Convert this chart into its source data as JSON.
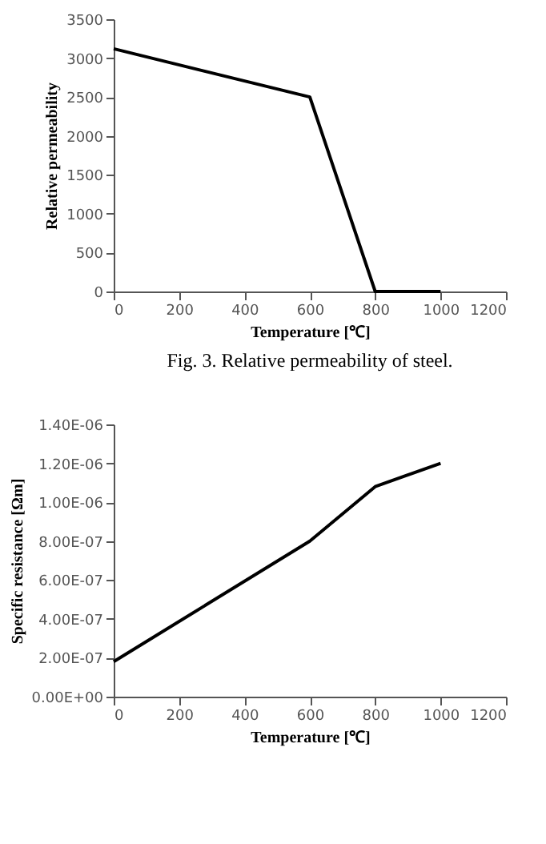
{
  "chart_data": [
    {
      "type": "line",
      "xlabel": "Temperature [℃]",
      "ylabel": "Relative permeability",
      "x": [
        0,
        600,
        800,
        1000
      ],
      "series": [
        {
          "color": "#000000",
          "values": [
            3120,
            2500,
            0,
            0
          ]
        }
      ],
      "xlim": [
        0,
        1200
      ],
      "xticks": [
        0,
        200,
        400,
        600,
        800,
        1000,
        1200
      ],
      "ylim": [
        0,
        3500
      ],
      "yticks": [
        0,
        500,
        1000,
        1500,
        2000,
        2500,
        3000,
        3500
      ],
      "grid": false,
      "marker": "none",
      "line_style": "solid",
      "annotations": [
        "Fig. 3. Relative permeability of steel."
      ]
    },
    {
      "type": "line",
      "xlabel": "Temperature [℃]",
      "ylabel": "Specific resistance [Ωm]",
      "x": [
        0,
        600,
        800,
        1000
      ],
      "series": [
        {
          "color": "#000000",
          "values": [
            1.8e-07,
            8e-07,
            1.08e-06,
            1.2e-06
          ]
        }
      ],
      "xlim": [
        0,
        1200
      ],
      "xticks": [
        0,
        200,
        400,
        600,
        800,
        1000,
        1200
      ],
      "ylim": [
        0,
        1.4e-06
      ],
      "yticks": [
        {
          "value": 0,
          "label": "0.00E+00"
        },
        {
          "value": 2e-07,
          "label": "2.00E-07"
        },
        {
          "value": 4e-07,
          "label": "4.00E-07"
        },
        {
          "value": 6e-07,
          "label": "6.00E-07"
        },
        {
          "value": 8e-07,
          "label": "8.00E-07"
        },
        {
          "value": 1e-06,
          "label": "1.00E-06"
        },
        {
          "value": 1.2e-06,
          "label": "1.20E-06"
        },
        {
          "value": 1.4e-06,
          "label": "1.40E-06"
        }
      ],
      "grid": false,
      "marker": "none",
      "line_style": "solid"
    }
  ]
}
